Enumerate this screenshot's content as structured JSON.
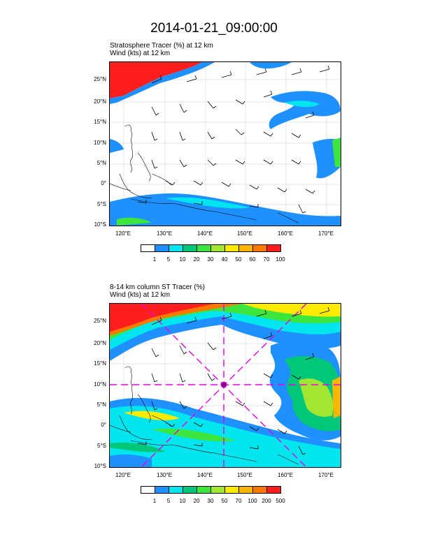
{
  "title": "2014-01-21_09:00:00",
  "panels": [
    {
      "line1": "Stratosphere Tracer   (%)     at   12 km",
      "line2": "Wind   (kts)     at   12 km",
      "lat_labels": [
        "25°N",
        "20°N",
        "15°N",
        "10°N",
        "5°N",
        "0°",
        "5°S",
        "10°S"
      ],
      "lon_labels": [
        "120°E",
        "130°E",
        "140°E",
        "150°E",
        "160°E",
        "170°E"
      ],
      "colorbar_colors": [
        "#ffffff",
        "#1e90ff",
        "#00e5ee",
        "#00c878",
        "#3ce63c",
        "#a0e632",
        "#ffeb00",
        "#ffb400",
        "#ff7800",
        "#ff1e1e"
      ],
      "colorbar_labels": [
        "1",
        "5",
        "10",
        "20",
        "30",
        "40",
        "50",
        "60",
        "70",
        "100"
      ]
    },
    {
      "line1": "8-14 km column ST Tracer   (%)",
      "line2": "Wind   (kts)     at   12 km",
      "lat_labels": [
        "25°N",
        "20°N",
        "15°N",
        "10°N",
        "5°N",
        "0°",
        "5°S",
        "10°S"
      ],
      "lon_labels": [
        "120°E",
        "130°E",
        "140°E",
        "150°E",
        "160°E",
        "170°E"
      ],
      "colorbar_colors": [
        "#ffffff",
        "#1e90ff",
        "#00e5ee",
        "#00c878",
        "#3ce63c",
        "#a0e632",
        "#ffeb00",
        "#ffb400",
        "#ff7800",
        "#ff1e1e"
      ],
      "colorbar_labels": [
        "1",
        "5",
        "10",
        "20",
        "30",
        "50",
        "70",
        "100",
        "200",
        "500"
      ]
    }
  ],
  "colors": {
    "tracer_blue": "#1e90ff",
    "tracer_cyan": "#00e5ee",
    "tracer_green": "#3ce63c",
    "tracer_yellow": "#ffeb00",
    "tracer_orange": "#ff7800",
    "tracer_red": "#ff1e1e",
    "storm_track": "#e600e6"
  }
}
